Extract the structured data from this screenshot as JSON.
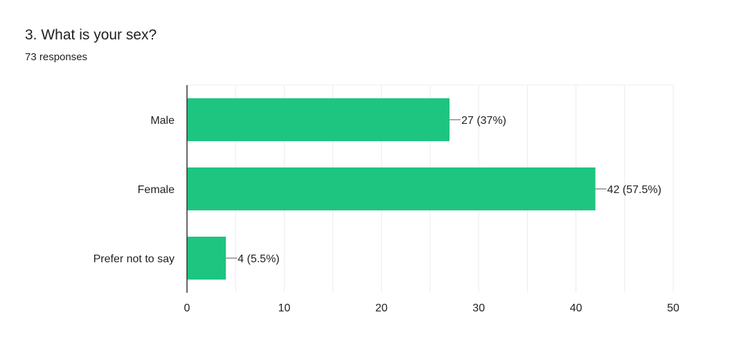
{
  "question": {
    "title": "3. What is your sex?",
    "responses": "73 responses"
  },
  "colors": {
    "bar": "#1ec580",
    "grid": "#ebebeb",
    "axis": "#333333",
    "text": "#222222"
  },
  "chart_data": {
    "type": "bar",
    "orientation": "horizontal",
    "categories": [
      "Male",
      "Female",
      "Prefer not to say"
    ],
    "values": [
      27,
      42,
      4
    ],
    "data_labels": [
      "27 (37%)",
      "42 (57.5%)",
      "4 (5.5%)"
    ],
    "xticks": [
      0,
      10,
      20,
      30,
      40,
      50
    ],
    "xlim": [
      0,
      50
    ],
    "grid": true,
    "legend": "none"
  }
}
